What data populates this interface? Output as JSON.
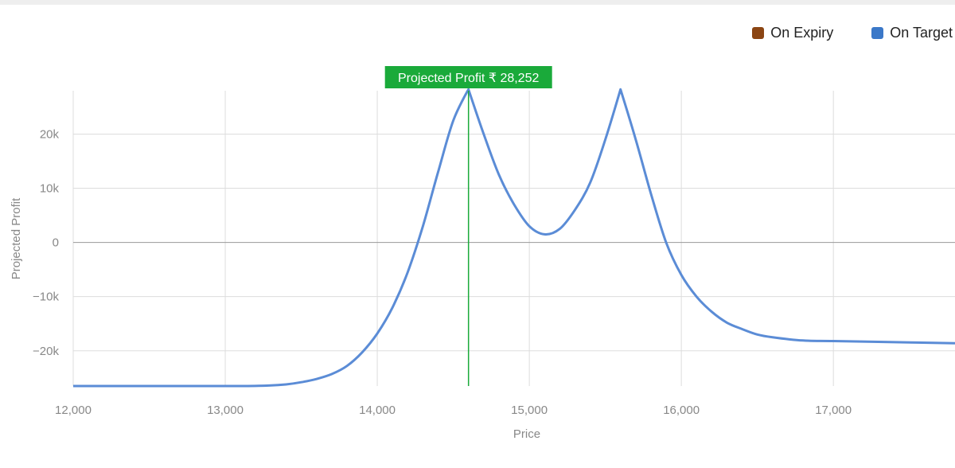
{
  "legend": {
    "items": [
      {
        "label": "On Expiry",
        "color": "#8B4513"
      },
      {
        "label": "On Target",
        "color": "#3B78C8"
      }
    ]
  },
  "tooltip": {
    "text": "Projected Profit ₹ 28,252",
    "color": "#1AAA3A",
    "x": 14600
  },
  "chart_data": {
    "type": "line",
    "xlabel": "Price",
    "ylabel": "Projected Profit",
    "xlim": [
      12000,
      17800
    ],
    "ylim": [
      -26500,
      28000
    ],
    "x_ticks": [
      12000,
      13000,
      14000,
      15000,
      16000,
      17000
    ],
    "x_tick_labels": [
      "12,000",
      "13,000",
      "14,000",
      "15,000",
      "16,000",
      "17,000"
    ],
    "y_ticks": [
      20000,
      10000,
      0,
      -10000,
      -20000
    ],
    "y_tick_labels": [
      "20k",
      "10k",
      "0",
      "−10k",
      "−20k"
    ],
    "grid": true,
    "line_color": "#5B8CD6",
    "series": [
      {
        "name": "On Target",
        "x": [
          12000,
          12500,
          13000,
          13150,
          13300,
          13400,
          13500,
          13600,
          13700,
          13800,
          13900,
          14000,
          14100,
          14200,
          14300,
          14400,
          14500,
          14600,
          14700,
          14800,
          14900,
          15000,
          15100,
          15200,
          15300,
          15400,
          15500,
          15600,
          15700,
          15800,
          15900,
          16000,
          16100,
          16200,
          16300,
          16400,
          16500,
          16600,
          16800,
          17000,
          17400,
          17800
        ],
        "y": [
          -26500,
          -26500,
          -26500,
          -26500,
          -26400,
          -26200,
          -25800,
          -25200,
          -24300,
          -22800,
          -20300,
          -16800,
          -12000,
          -5500,
          3000,
          13000,
          22500,
          28252,
          20000,
          12500,
          7000,
          3000,
          1500,
          2500,
          6000,
          11000,
          19000,
          28252,
          19000,
          9000,
          0,
          -6000,
          -10000,
          -12800,
          -14800,
          -16000,
          -17000,
          -17500,
          -18100,
          -18200,
          -18400,
          -18600
        ]
      }
    ]
  }
}
